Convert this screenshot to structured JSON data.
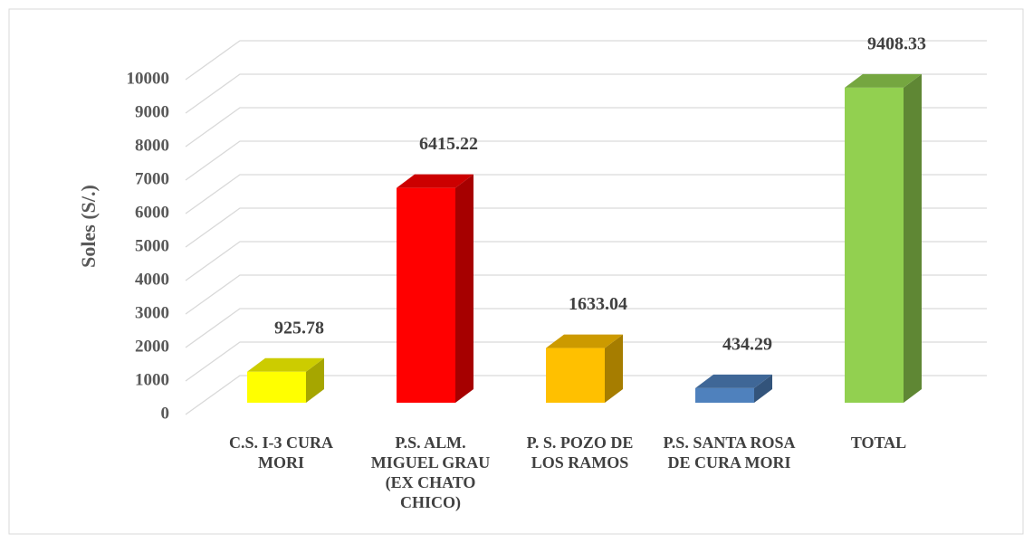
{
  "chart_data": {
    "type": "bar3d",
    "y_label": "Soles (S/.)",
    "categories": [
      "C.S. I-3 CURA MORI",
      "P.S. ALM. MIGUEL GRAU (EX CHATO CHICO)",
      "P. S. POZO DE LOS RAMOS",
      "P.S. SANTA ROSA DE CURA MORI",
      "TOTAL"
    ],
    "values": [
      925.78,
      6415.22,
      1633.04,
      434.29,
      9408.33
    ],
    "colors": [
      "#ffff00",
      "#ff0000",
      "#ffc000",
      "#4f81bd",
      "#92d050"
    ],
    "ylim": [
      0,
      10000
    ],
    "yticks": [
      0,
      1000,
      2000,
      3000,
      4000,
      5000,
      6000,
      7000,
      8000,
      9000,
      10000
    ],
    "grid": true
  }
}
